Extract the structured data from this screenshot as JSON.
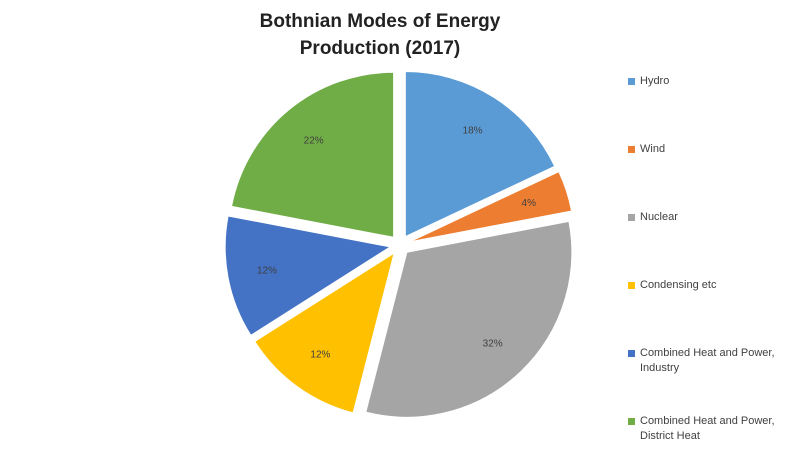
{
  "chart_data": {
    "type": "pie",
    "title": "Bothnian Modes of Energy\nProduction (2017)",
    "slices": [
      {
        "name": "Hydro",
        "value": 18,
        "label": "18%",
        "color": "#5b9bd5"
      },
      {
        "name": "Wind",
        "value": 4,
        "label": "4%",
        "color": "#ed7d31"
      },
      {
        "name": "Nuclear",
        "value": 32,
        "label": "32%",
        "color": "#a5a5a5"
      },
      {
        "name": "Condensing etc",
        "value": 12,
        "label": "12%",
        "color": "#ffc000"
      },
      {
        "name": "Combined Heat and Power, Industry",
        "value": 12,
        "label": "12%",
        "color": "#4472c4"
      },
      {
        "name": "Combined Heat and Power, District Heat",
        "value": 22,
        "label": "22%",
        "color": "#70ad47"
      }
    ],
    "legend_position": "right",
    "exploded": true
  }
}
